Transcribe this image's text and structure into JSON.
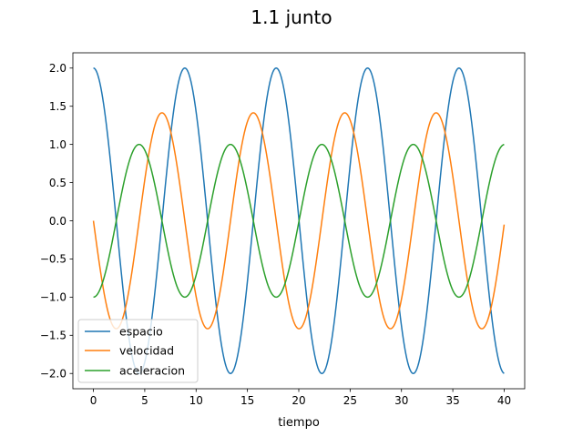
{
  "chart_data": {
    "type": "line",
    "title": "1.1 junto",
    "xlabel": "tiempo",
    "ylabel": "",
    "xlim": [
      -2.0,
      42.0
    ],
    "ylim": [
      -2.2,
      2.2
    ],
    "xticks": [
      0,
      5,
      10,
      15,
      20,
      25,
      30,
      35,
      40
    ],
    "yticks": [
      -2.0,
      -1.5,
      -1.0,
      -0.5,
      0.0,
      0.5,
      1.0,
      1.5,
      2.0
    ],
    "xtick_labels": [
      "0",
      "5",
      "10",
      "15",
      "20",
      "25",
      "30",
      "35",
      "40"
    ],
    "ytick_labels": [
      "−2.0",
      "−1.5",
      "−1.0",
      "−0.5",
      "0.0",
      "0.5",
      "1.0",
      "1.5",
      "2.0"
    ],
    "grid": false,
    "legend_position": "bottom-left",
    "x_range": [
      0,
      40
    ],
    "period": 8.9,
    "series": [
      {
        "name": "espacio",
        "color": "#1f77b4",
        "amplitude": 2.0,
        "function": "amplitude*cos(2*pi*t/period)"
      },
      {
        "name": "velocidad",
        "color": "#ff7f0e",
        "amplitude": 1.414,
        "function": "-amplitude*sin(2*pi*t/period)"
      },
      {
        "name": "aceleracion",
        "color": "#2ca02c",
        "amplitude": 1.0,
        "function": "-amplitude*cos(2*pi*t/period)"
      }
    ]
  }
}
